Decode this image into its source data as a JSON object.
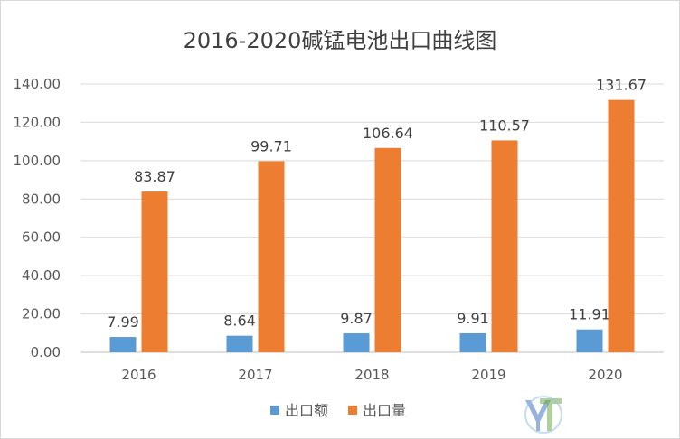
{
  "chart_data": {
    "type": "bar",
    "title": "2016-2020碱锰电池出口曲线图",
    "categories": [
      "2016",
      "2017",
      "2018",
      "2019",
      "2020"
    ],
    "series": [
      {
        "name": "出口额",
        "values": [
          7.99,
          8.64,
          9.87,
          9.91,
          11.91
        ],
        "labels": [
          "7.99",
          "8.64",
          "9.87",
          "9.91",
          "11.91"
        ],
        "color": "#5b9bd5"
      },
      {
        "name": "出口量",
        "values": [
          83.87,
          99.71,
          106.64,
          110.57,
          131.67
        ],
        "labels": [
          "83.87",
          "99.71",
          "106.64",
          "110.57",
          "131.67"
        ],
        "color": "#ed7d31"
      }
    ],
    "ylim": [
      0,
      140
    ],
    "yticks": [
      "0.00",
      "20.00",
      "40.00",
      "60.00",
      "80.00",
      "100.00",
      "120.00",
      "140.00"
    ],
    "grid": true,
    "legend": "bottom"
  },
  "watermark": {
    "name": "logo-watermark",
    "colors": [
      "#4472c4",
      "#70ad47"
    ]
  }
}
